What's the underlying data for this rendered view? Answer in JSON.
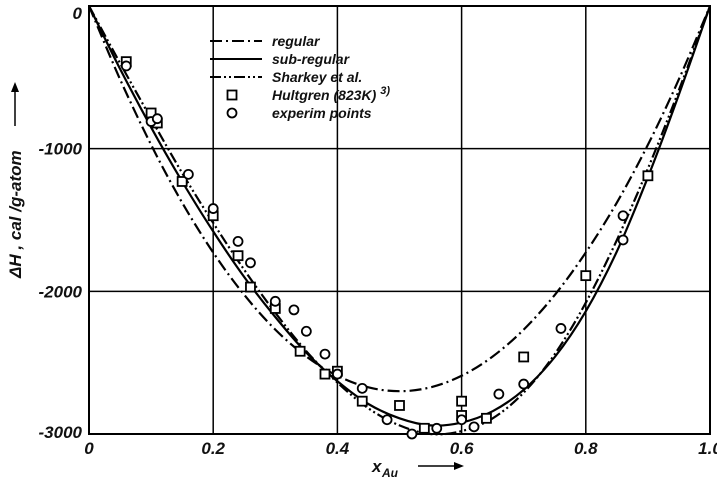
{
  "chart_data": {
    "type": "scatter",
    "title": "",
    "xlabel": "x",
    "xlabel_sub": "Au",
    "ylabel": "ΔH , cal /g-atom",
    "xlim": [
      0,
      1.0
    ],
    "ylim": [
      -3000,
      0
    ],
    "grid": true,
    "x_ticks": [
      0,
      0.2,
      0.4,
      0.6,
      0.8,
      1.0
    ],
    "x_tick_labels": [
      "0",
      "0.2",
      "0.4",
      "0.6",
      "0.8",
      "1.0"
    ],
    "y_ticks": [
      0,
      -1000,
      -2000,
      -3000
    ],
    "y_tick_labels": [
      "0",
      "-1000",
      "-2000",
      "-3000"
    ],
    "legend_position": "top-center",
    "series": [
      {
        "name": "regular",
        "kind": "line",
        "style": "dash-dot",
        "x": [
          0,
          0.05,
          0.1,
          0.15,
          0.2,
          0.25,
          0.3,
          0.35,
          0.4,
          0.45,
          0.5,
          0.55,
          0.6,
          0.65,
          0.7,
          0.75,
          0.8,
          0.85,
          0.9,
          0.95,
          1.0
        ],
        "y": [
          0,
          -513,
          -973,
          -1378,
          -1728,
          -2025,
          -2268,
          -2457,
          -2592,
          -2673,
          -2700,
          -2673,
          -2592,
          -2457,
          -2268,
          -2025,
          -1728,
          -1378,
          -973,
          -513,
          0
        ]
      },
      {
        "name": "sub-regular",
        "kind": "line",
        "style": "solid",
        "x": [
          0,
          0.05,
          0.1,
          0.15,
          0.2,
          0.25,
          0.3,
          0.35,
          0.4,
          0.45,
          0.5,
          0.55,
          0.6,
          0.65,
          0.7,
          0.75,
          0.8,
          0.85,
          0.9,
          0.95,
          1.0
        ],
        "y": [
          0,
          -440,
          -850,
          -1230,
          -1580,
          -1900,
          -2180,
          -2430,
          -2630,
          -2790,
          -2890,
          -2940,
          -2920,
          -2840,
          -2690,
          -2460,
          -2140,
          -1720,
          -1200,
          -620,
          0
        ]
      },
      {
        "name": "Sharkey et al.",
        "kind": "line",
        "style": "dash-dot-dot",
        "x": [
          0,
          0.05,
          0.1,
          0.15,
          0.2,
          0.25,
          0.3,
          0.35,
          0.4,
          0.45,
          0.5,
          0.55,
          0.6,
          0.65,
          0.7,
          0.75,
          0.8,
          0.85,
          0.9,
          0.95,
          1.0
        ],
        "y": [
          0,
          -400,
          -790,
          -1170,
          -1520,
          -1850,
          -2150,
          -2420,
          -2640,
          -2820,
          -2940,
          -3000,
          -2980,
          -2890,
          -2710,
          -2440,
          -2080,
          -1640,
          -1140,
          -590,
          0
        ]
      },
      {
        "name": "Hultgren (823K)",
        "name_superscript": "3)",
        "kind": "scatter",
        "marker": "square",
        "x": [
          0.06,
          0.1,
          0.11,
          0.15,
          0.2,
          0.24,
          0.26,
          0.3,
          0.34,
          0.38,
          0.4,
          0.44,
          0.5,
          0.54,
          0.6,
          0.6,
          0.64,
          0.7,
          0.8,
          0.9
        ],
        "y": [
          -390,
          -750,
          -820,
          -1230,
          -1470,
          -1750,
          -1970,
          -2120,
          -2420,
          -2580,
          -2560,
          -2770,
          -2800,
          -2960,
          -2770,
          -2870,
          -2890,
          -2460,
          -1890,
          -1190
        ]
      },
      {
        "name": "experim points",
        "kind": "scatter",
        "marker": "circle",
        "x": [
          0.06,
          0.1,
          0.11,
          0.16,
          0.2,
          0.24,
          0.26,
          0.3,
          0.33,
          0.35,
          0.38,
          0.4,
          0.44,
          0.48,
          0.52,
          0.56,
          0.6,
          0.62,
          0.66,
          0.7,
          0.76,
          0.86,
          0.86
        ],
        "y": [
          -420,
          -810,
          -790,
          -1180,
          -1420,
          -1650,
          -1800,
          -2070,
          -2130,
          -2280,
          -2440,
          -2580,
          -2680,
          -2900,
          -3000,
          -2960,
          -2900,
          -2950,
          -2720,
          -2650,
          -2260,
          -1470,
          -1640
        ]
      }
    ]
  }
}
